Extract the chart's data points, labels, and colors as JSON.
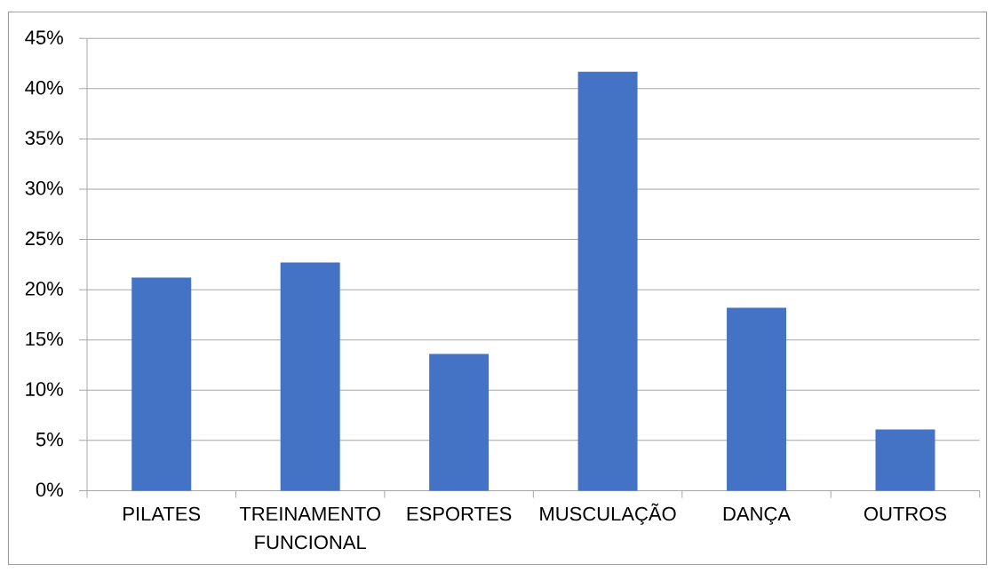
{
  "chart_data": {
    "type": "bar",
    "categories": [
      "PILATES",
      "TREINAMENTO FUNCIONAL",
      "ESPORTES",
      "MUSCULAÇÃO",
      "DANÇA",
      "OUTROS"
    ],
    "values": [
      21.2,
      22.7,
      13.6,
      41.7,
      18.2,
      6.1
    ],
    "color": "#4472c4",
    "ylim": [
      0,
      45
    ],
    "yticks": [
      {
        "value": 0,
        "label": "0%"
      },
      {
        "value": 5,
        "label": "5%"
      },
      {
        "value": 10,
        "label": "10%"
      },
      {
        "value": 15,
        "label": "15%"
      },
      {
        "value": 20,
        "label": "20%"
      },
      {
        "value": 25,
        "label": "25%"
      },
      {
        "value": 30,
        "label": "30%"
      },
      {
        "value": 35,
        "label": "35%"
      },
      {
        "value": 40,
        "label": "40%"
      },
      {
        "value": 45,
        "label": "45%"
      }
    ],
    "grid": "y"
  }
}
